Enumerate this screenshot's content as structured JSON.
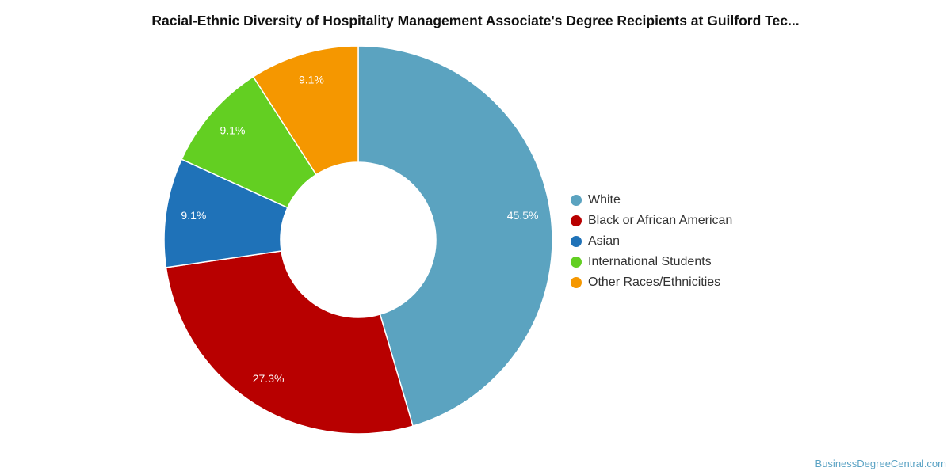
{
  "chart_data": {
    "type": "pie",
    "variant": "donut",
    "title": "Racial-Ethnic Diversity of Hospitality Management Associate's Degree Recipients at Guilford Tec...",
    "legend_position": "right",
    "slices": [
      {
        "name": "White",
        "value": 45.5,
        "label": "45.5%",
        "color": "#5ba3c0"
      },
      {
        "name": "Black or African American",
        "value": 27.3,
        "label": "27.3%",
        "color": "#b80000"
      },
      {
        "name": "Asian",
        "value": 9.1,
        "label": "9.1%",
        "color": "#1f72b8"
      },
      {
        "name": "International Students",
        "value": 9.1,
        "label": "9.1%",
        "color": "#63cf22"
      },
      {
        "name": "Other Races/Ethnicities",
        "value": 9.1,
        "label": "9.1%",
        "color": "#f59700"
      }
    ]
  },
  "credit": "BusinessDegreeCentral.com"
}
